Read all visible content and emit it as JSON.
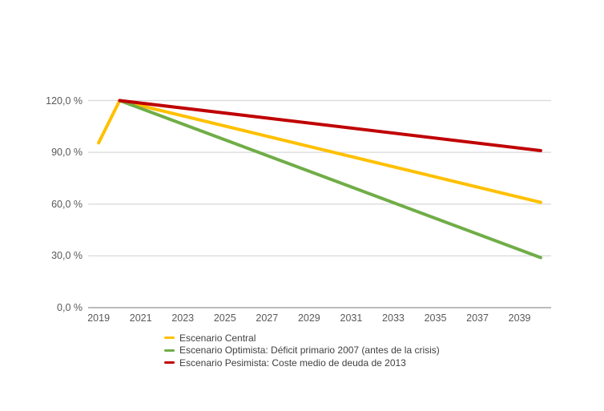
{
  "chart_data": {
    "type": "line",
    "title": "",
    "unit": "%",
    "x_axis": {
      "tick_labels": [
        "2019",
        "2021",
        "2023",
        "2025",
        "2027",
        "2029",
        "2031",
        "2033",
        "2035",
        "2037",
        "2039"
      ],
      "first_year": 2019,
      "last_year": 2040
    },
    "y_axis": {
      "tick_labels": [
        "0,0 %",
        "30,0 %",
        "60,0 %",
        "90,0 %",
        "120,0 %"
      ],
      "tick_values": [
        0,
        30,
        60,
        90,
        120
      ],
      "min": 0,
      "max": 120
    },
    "grid": "horizontal",
    "legend_position": "bottom-left",
    "colors": {
      "gridline": "#D9D9D9",
      "axis_line": "#A6A6A6",
      "tick_text": "#595959",
      "legend_text": "#404040"
    },
    "series": [
      {
        "name": "Escenario Central",
        "color": "#FFC000",
        "points": [
          [
            2019,
            95.5
          ],
          [
            2020,
            120.0
          ],
          [
            2040,
            61.0
          ]
        ]
      },
      {
        "name": "Escenario Optimista: Déficit primario 2007 (antes de la crisis)",
        "color": "#70AD47",
        "points": [
          [
            2020,
            120.0
          ],
          [
            2040,
            29.0
          ]
        ]
      },
      {
        "name": "Escenario Pesimista: Coste medio de deuda de 2013",
        "color": "#C00000",
        "points": [
          [
            2020,
            120.0
          ],
          [
            2040,
            91.0
          ]
        ]
      }
    ]
  }
}
